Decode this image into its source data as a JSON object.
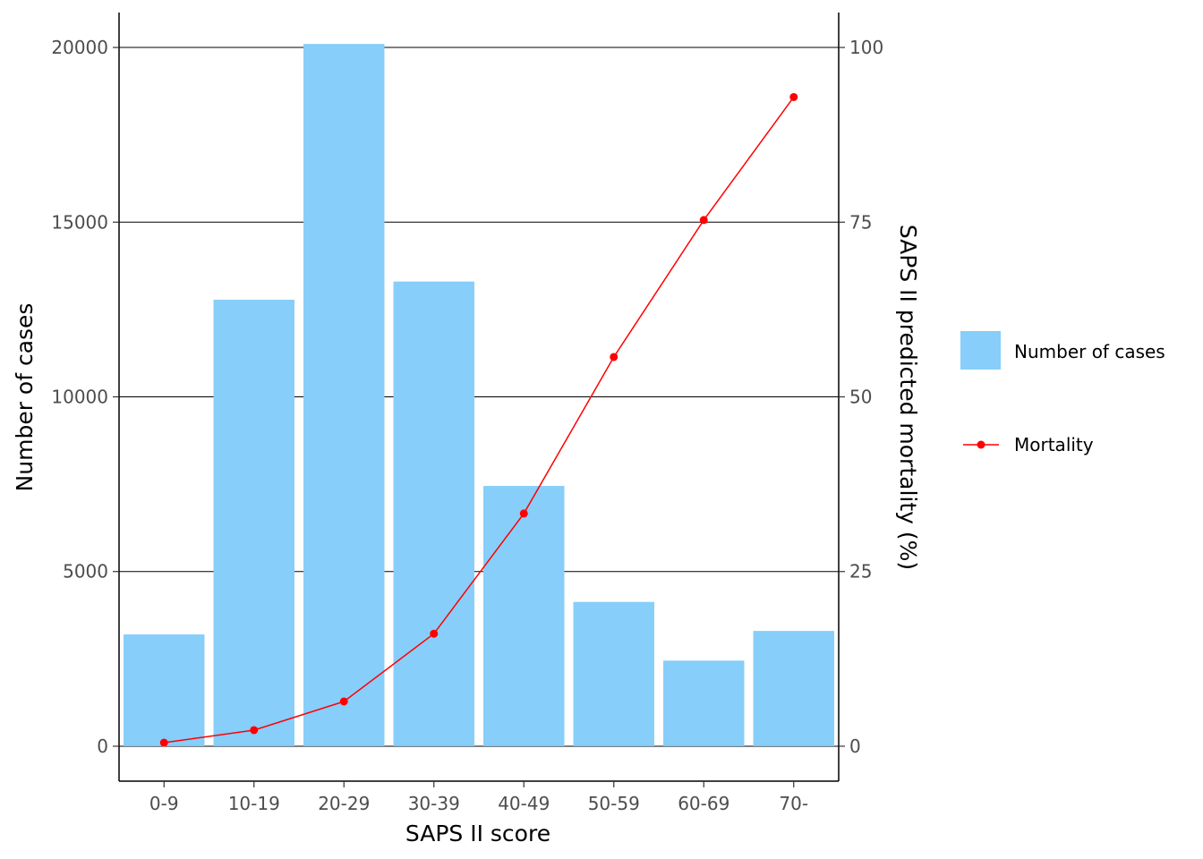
{
  "chart_data": {
    "type": "bar",
    "categories": [
      "0-9",
      "10-19",
      "20-29",
      "30-39",
      "40-49",
      "50-59",
      "60-69",
      "70-"
    ],
    "series": [
      {
        "name": "Number of cases",
        "type": "bar",
        "axis": "left",
        "color": "#87CEFA",
        "values": [
          3200,
          12780,
          20100,
          13300,
          7450,
          4130,
          2450,
          3300
        ]
      },
      {
        "name": "Mortality",
        "type": "line",
        "axis": "right",
        "color": "#FF0000",
        "values": [
          0.5,
          2.3,
          6.4,
          16.1,
          33.3,
          55.7,
          75.3,
          92.9
        ]
      }
    ],
    "xlabel": "SAPS II score",
    "ylabel": "Number of cases",
    "ylabel_right": "SAPS II predicted mortality (%)",
    "ylim": [
      -1000,
      21000
    ],
    "ylim_right": [
      -5,
      105
    ],
    "yticks": [
      0,
      5000,
      10000,
      15000,
      20000
    ],
    "yticks_right": [
      0,
      25,
      50,
      75,
      100
    ],
    "grid": "horizontal major",
    "legend_position": "right"
  }
}
